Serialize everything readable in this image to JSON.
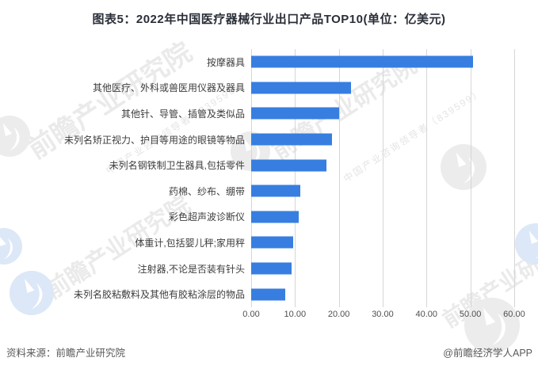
{
  "title": "图表5：2022年中国医疗器械行业出口产品TOP10(单位：亿美元)",
  "watermark": {
    "text": "前瞻产业研究院",
    "subtext": "中国产业咨询领导者（839599）"
  },
  "footer": {
    "source": "资料来源：前瞻产业研究院",
    "credit": "@前瞻经济学人APP"
  },
  "colors": {
    "bar": "#377EE0",
    "grid": "#D6D6D6",
    "title_text": "#2A2E38",
    "label_text": "#3D3D3D",
    "tick_text": "#4F4F4F",
    "footer_text": "#595959"
  },
  "chart_data": {
    "type": "bar",
    "orientation": "horizontal",
    "title": "2022年中国医疗器械行业出口产品TOP10",
    "unit": "亿美元",
    "categories": [
      "按摩器具",
      "其他医疗、外科或兽医用仪器及器具",
      "其他针、导管、插管及类似品",
      "未列名矫正视力、护目等用途的眼镜等物品",
      "未列名钢铁制卫生器具,包括零件",
      "药棉、纱布、绷带",
      "彩色超声波诊断仪",
      "体重计,包括婴儿秤;家用秤",
      "注射器,不论是否装有针头",
      "未列名胶粘敷料及其他有胶粘涂层的物品"
    ],
    "values": [
      50.6,
      22.7,
      20.0,
      18.4,
      17.2,
      11.2,
      10.9,
      9.5,
      9.3,
      7.8
    ],
    "xlabel": "",
    "ylabel": "",
    "xlim": [
      0,
      60
    ],
    "xticks": [
      0,
      10,
      20,
      30,
      40,
      50,
      60
    ],
    "xtick_labels": [
      "0.00",
      "10.00",
      "20.00",
      "30.00",
      "40.00",
      "50.00",
      "60.00"
    ],
    "grid": true,
    "legend": false
  }
}
